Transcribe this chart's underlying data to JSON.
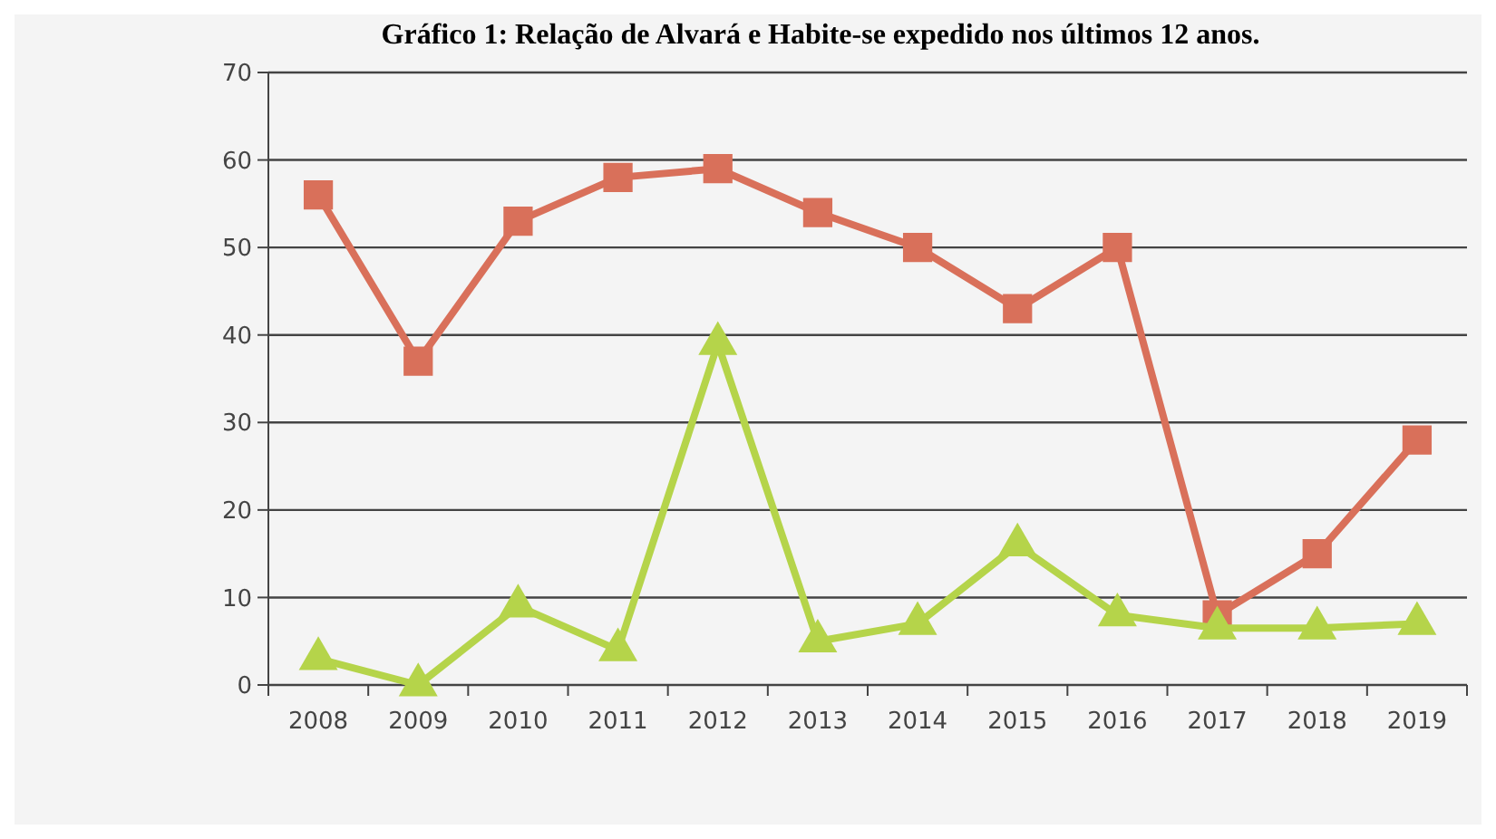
{
  "chart_data": {
    "type": "line",
    "title": "Gráfico 1: Relação de Alvará e Habite-se expedido nos últimos 12 anos.",
    "categories": [
      "2008",
      "2009",
      "2010",
      "2011",
      "2012",
      "2013",
      "2014",
      "2015",
      "2016",
      "2017",
      "2018",
      "2019"
    ],
    "series": [
      {
        "color": "#d9705a",
        "marker": "square",
        "values": [
          56,
          37,
          53,
          58,
          59,
          54,
          50,
          43,
          50,
          8,
          15,
          28
        ]
      },
      {
        "color": "#b5d44a",
        "marker": "triangle",
        "values": [
          3,
          0,
          9,
          4,
          39,
          5,
          7,
          16,
          8,
          6.5,
          6.5,
          7
        ]
      }
    ],
    "ylim": [
      0,
      70
    ],
    "yticks": [
      0,
      10,
      20,
      30,
      40,
      50,
      60,
      70
    ],
    "grid": "y"
  }
}
